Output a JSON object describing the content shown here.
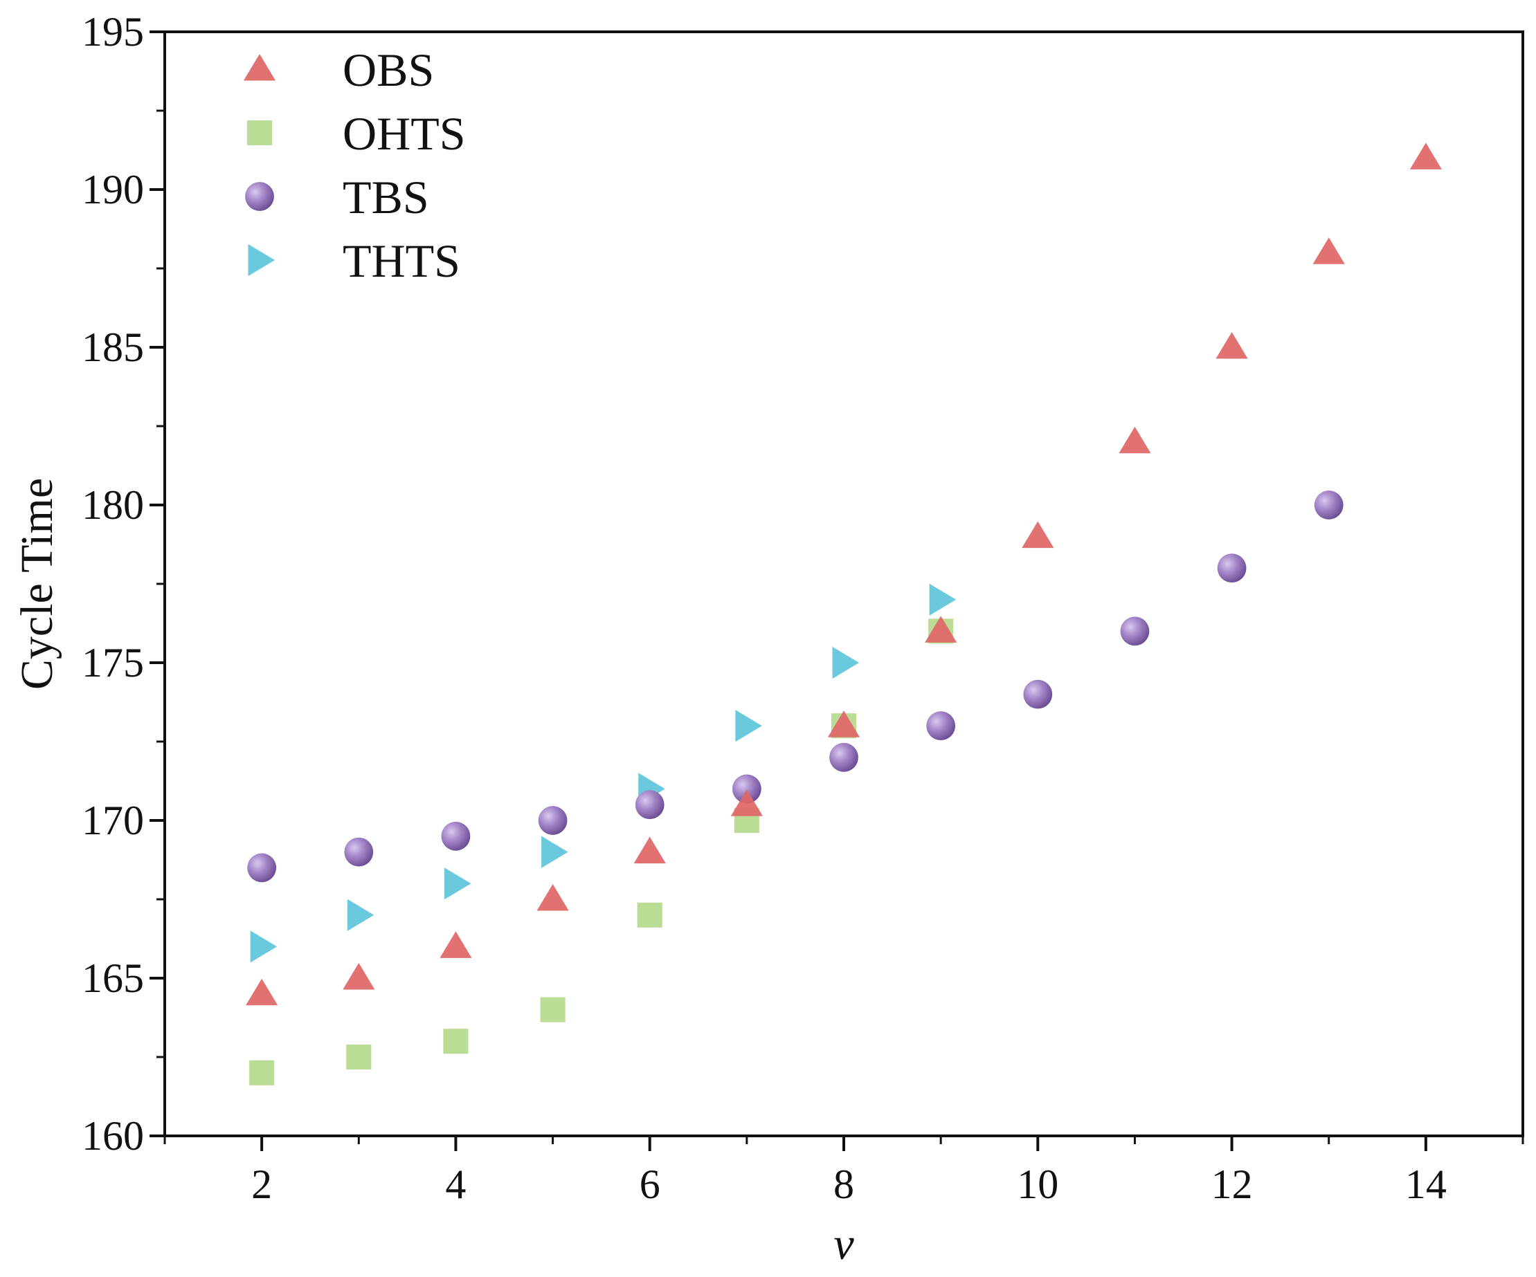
{
  "chart_data": {
    "type": "scatter",
    "title": "",
    "xlabel": "v",
    "ylabel": "Cycle Time",
    "xlim": [
      1,
      15
    ],
    "ylim": [
      160,
      195
    ],
    "x_ticks": [
      2,
      4,
      6,
      8,
      10,
      12,
      14
    ],
    "y_ticks": [
      160,
      165,
      170,
      175,
      180,
      185,
      190,
      195
    ],
    "x_tick_labels": [
      "2",
      "4",
      "6",
      "8",
      "10",
      "12",
      "14"
    ],
    "y_tick_labels": [
      "160",
      "165",
      "170",
      "175",
      "180",
      "185",
      "190",
      "195"
    ],
    "grid": false,
    "legend_position": "top-left",
    "series": [
      {
        "name": "OBS",
        "marker": "triangle-up",
        "color": "#e06666",
        "x": [
          2,
          3,
          4,
          5,
          6,
          7,
          8,
          9,
          10,
          11,
          12,
          13,
          14
        ],
        "y": [
          164.5,
          165,
          166,
          167.5,
          169,
          170.5,
          173,
          176,
          179,
          182,
          185,
          188,
          191
        ]
      },
      {
        "name": "OHTS",
        "marker": "square",
        "color": "#b5d98b",
        "x": [
          2,
          3,
          4,
          5,
          6,
          7,
          8,
          9
        ],
        "y": [
          162,
          162.5,
          163,
          164,
          167,
          170,
          173,
          176
        ]
      },
      {
        "name": "TBS",
        "marker": "circle",
        "color": "#9a7bbf",
        "x": [
          2,
          3,
          4,
          5,
          6,
          7,
          8,
          9,
          10,
          11,
          12,
          13
        ],
        "y": [
          168.5,
          169,
          169.5,
          170,
          170.5,
          171,
          172,
          173,
          174,
          176,
          178,
          180
        ]
      },
      {
        "name": "THTS",
        "marker": "triangle-right",
        "color": "#5ec4da",
        "x": [
          2,
          3,
          4,
          5,
          6,
          7,
          8,
          9
        ],
        "y": [
          166,
          167,
          168,
          169,
          171,
          173,
          175,
          177
        ]
      }
    ]
  }
}
